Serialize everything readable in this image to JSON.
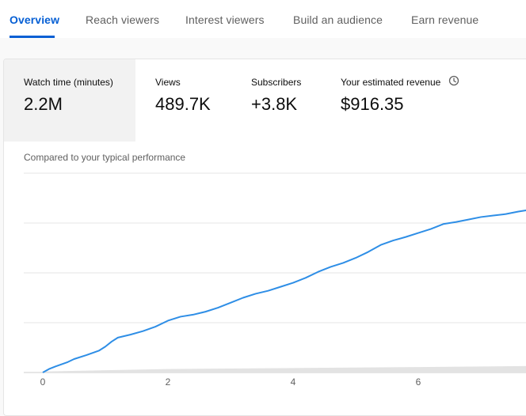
{
  "tabs": [
    {
      "label": "Overview",
      "active": true
    },
    {
      "label": "Reach viewers",
      "active": false
    },
    {
      "label": "Interest viewers",
      "active": false
    },
    {
      "label": "Build an audience",
      "active": false
    },
    {
      "label": "Earn revenue",
      "active": false
    }
  ],
  "metrics": [
    {
      "label": "Watch time (minutes)",
      "value": "2.2M",
      "selected": true
    },
    {
      "label": "Views",
      "value": "489.7K",
      "selected": false
    },
    {
      "label": "Subscribers",
      "value": "+3.8K",
      "selected": false
    },
    {
      "label": "Your estimated revenue",
      "value": "$916.35",
      "selected": false,
      "icon": "clock-icon"
    }
  ],
  "comparison_text": "Compared to your typical performance",
  "colors": {
    "accent": "#065fd4",
    "line": "#2e8ee6",
    "band": "#e3e3e3",
    "grid": "#e5e5e5"
  },
  "chart_data": {
    "type": "line",
    "xticks": [
      "0",
      "2",
      "4",
      "6"
    ],
    "xlim": [
      0,
      7.8
    ],
    "ylim": [
      0,
      4
    ],
    "grid": true,
    "series": [
      {
        "x": [
          0,
          0.1,
          0.2,
          0.4,
          0.5,
          0.7,
          0.9,
          1.0,
          1.1,
          1.2,
          1.4,
          1.6,
          1.8,
          2.0,
          2.2,
          2.4,
          2.6,
          2.8,
          3.0,
          3.2,
          3.4,
          3.6,
          3.8,
          4.0,
          4.2,
          4.4,
          4.6,
          4.8,
          5.0,
          5.2,
          5.4,
          5.6,
          5.8,
          6.0,
          6.2,
          6.4,
          6.6,
          6.8,
          7.0,
          7.2,
          7.4,
          7.6,
          7.8
        ],
        "y": [
          0,
          0.07,
          0.12,
          0.21,
          0.27,
          0.35,
          0.44,
          0.52,
          0.62,
          0.7,
          0.76,
          0.83,
          0.92,
          1.04,
          1.12,
          1.16,
          1.22,
          1.3,
          1.4,
          1.5,
          1.58,
          1.64,
          1.72,
          1.8,
          1.9,
          2.02,
          2.12,
          2.2,
          2.3,
          2.42,
          2.56,
          2.65,
          2.72,
          2.8,
          2.88,
          2.98,
          3.02,
          3.07,
          3.12,
          3.15,
          3.18,
          3.23,
          3.27
        ]
      }
    ],
    "typical_range": {
      "x": [
        0,
        2,
        4,
        6,
        7.8
      ],
      "low": [
        0,
        0,
        0,
        0,
        0
      ],
      "high": [
        0.02,
        0.07,
        0.09,
        0.11,
        0.13
      ]
    }
  }
}
